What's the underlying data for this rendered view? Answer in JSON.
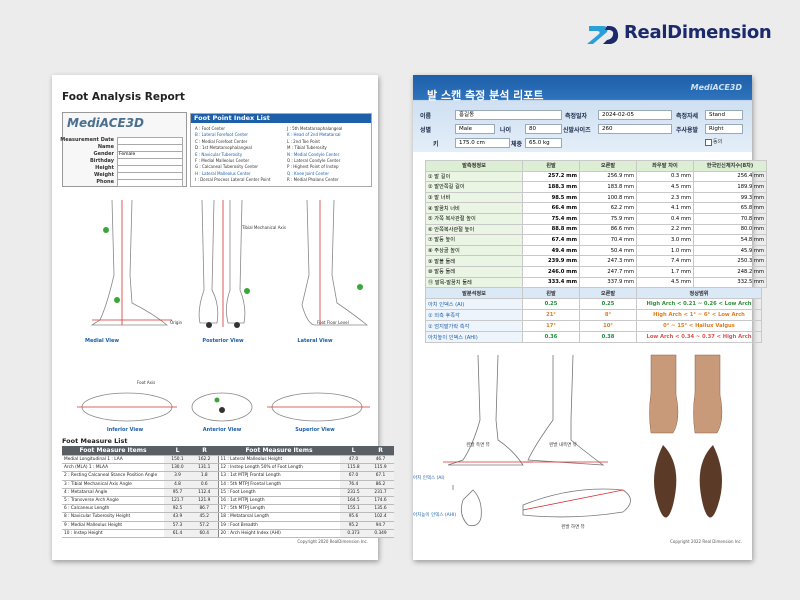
{
  "brand": "RealDimension",
  "report_en": {
    "title": "Foot Analysis Report",
    "logo": "MediACE3D",
    "fields": [
      "Measurement Date",
      "Name",
      "Gender",
      "Birthday",
      "Height",
      "Weight",
      "Phone"
    ],
    "gender_value": "Female",
    "point_index": {
      "title": "Foot Point Index List",
      "items": [
        "A : Foot Center",
        "B : Lateral Forefoot Center",
        "C : Medial Forefoot Center",
        "D : 1st Metatarsophalangeal",
        "E : Navicular Tuberosity",
        "F : Medial Malleolus Center",
        "G : Calcaneal Tuberosity Center",
        "H : Lateral Malleolus Center",
        "I : Dorsal Process Lateral Center Point",
        "J : 5th Metatarsophalangeal",
        "K : Head of 2nd Metatarsal",
        "L : 2nd Toe Point",
        "M : Tibial Tuberosity",
        "N : Medial Condyle Center",
        "O : Lateral Condyle Center",
        "P : Highest Point of Instep",
        "Q : Knee Joint Center",
        "R : Medial Phalanx Center"
      ]
    },
    "views": [
      "Medial View",
      "Posterior View",
      "Lateral View",
      "Inferior View",
      "Anterior View",
      "Superior View"
    ],
    "diagram_labels": [
      "Tibial Mechanical Axis",
      "Origin",
      "Foot Floor Level",
      "Foot Axis"
    ],
    "measure_list": {
      "title": "Foot Measure List",
      "headers": [
        "Foot Measure Items",
        "L",
        "R",
        "Foot Measure Items",
        "L",
        "R"
      ],
      "rows": [
        [
          "Medial Longitudinal   1 : LAA",
          "150.1",
          "162.2",
          "11 : Lateral Malleolus Height",
          "47.0",
          "46.7"
        ],
        [
          "Arch (MLA)   1 : MLAA",
          "130.0",
          "131.1",
          "12 : Instep Length 50% of Foot Length",
          "115.8",
          "115.9"
        ],
        [
          "2 : Resting Calcaneal Stance Position Angle",
          "3.9",
          "1.8",
          "13 : 1st MTPJ Frontal Length",
          "67.0",
          "67.1"
        ],
        [
          "3 : Tibial Mechanical Axis Angle",
          "4.8",
          "0.6",
          "14 : 5th MTPJ Frontal Length",
          "76.4",
          "86.2"
        ],
        [
          "4 : Metatarsal Angle",
          "95.7",
          "112.4",
          "15 : Foot Length",
          "231.5",
          "231.7"
        ],
        [
          "5 : Transverse Arch Angle",
          "121.7",
          "121.9",
          "16 : 1st MTPJ Length",
          "164.5",
          "174.6"
        ],
        [
          "6 : Calcaneus Length",
          "92.5",
          "86.7",
          "17 : 5th MTPJ Length",
          "155.1",
          "135.6"
        ],
        [
          "8 : Navicular Tuberosity Height",
          "43.9",
          "45.2",
          "18 : Metatarsal Length",
          "95.6",
          "102.4"
        ],
        [
          "9 : Medial Malleolus Height",
          "57.3",
          "57.2",
          "19 : Foot Breadth",
          "95.2",
          "94.7"
        ],
        [
          "10 : Instep Height",
          "61.4",
          "60.4",
          "20 : Arch Height Index (AHI)",
          "0.373",
          "0.349"
        ]
      ]
    },
    "copyright": "Copyright 2020 RealDimension Inc."
  },
  "report_ko": {
    "title": "발 스캔 측정 분석 리포트",
    "logo": "MediACE3D",
    "info": [
      [
        "이름",
        "홍길동"
      ],
      [
        "측정일자",
        "2024-02-05"
      ],
      [
        "측정자세",
        "Stand"
      ],
      [
        "성별",
        "Male"
      ],
      [
        "나이",
        "80"
      ],
      [
        "신발사이즈",
        "260"
      ],
      [
        "주사용발",
        "Right"
      ],
      [
        "키",
        "175.0 cm"
      ],
      [
        "체중",
        "65.0 kg"
      ]
    ],
    "consent": "동의",
    "table1": {
      "headers": [
        "발측정정보",
        "왼발",
        "오른발",
        "좌우발 차이",
        "한국인신체지수(8차)"
      ],
      "rows": [
        [
          "① 발 길이",
          "257.2 mm",
          "256.9 mm",
          "0.3 mm",
          "256.4 mm"
        ],
        [
          "② 발안쪽길 길이",
          "188.3 mm",
          "183.8 mm",
          "4.5 mm",
          "189.9 mm"
        ],
        [
          "③ 발 너비",
          "98.5 mm",
          "100.8 mm",
          "2.3 mm",
          "99.3 mm"
        ],
        [
          "④ 발꿈치 너비",
          "66.4 mm",
          "62.2 mm",
          "4.1 mm",
          "65.8 mm"
        ],
        [
          "⑤ 가쪽 복사관절 높이",
          "75.4 mm",
          "75.9 mm",
          "0.4 mm",
          "70.8 mm"
        ],
        [
          "⑥ 안쪽복사관절 높이",
          "88.8 mm",
          "86.6 mm",
          "2.2 mm",
          "80.0 mm"
        ],
        [
          "⑦ 발등 높이",
          "67.4 mm",
          "70.4 mm",
          "3.0 mm",
          "54.8 mm"
        ],
        [
          "⑧ 주상골 높이",
          "49.4 mm",
          "50.4 mm",
          "1.0 mm",
          "45.9 mm"
        ],
        [
          "⑨ 발볼 둘레",
          "239.9 mm",
          "247.3 mm",
          "7.4 mm",
          "250.3 mm"
        ],
        [
          "⑩ 발등 둘레",
          "246.0 mm",
          "247.7 mm",
          "1.7 mm",
          "248.2 mm"
        ],
        [
          "⑪ 발목-발꿈치 둘레",
          "333.4 mm",
          "337.9 mm",
          "4.5 mm",
          "332.5 mm"
        ]
      ]
    },
    "table2": {
      "headers": [
        "발분석정보",
        "왼발",
        "오른발",
        "정상범위"
      ],
      "rows": [
        [
          "아치 인덱스 (AI)",
          "0.25",
          "0.25",
          "High Arch < 0.21 ~ 0.26 < Low Arch"
        ],
        [
          "① 외측 후족각",
          "21°",
          "8°",
          "High Arch < 1° ~ 6° < Low Arch"
        ],
        [
          "② 엄지발가락 측각",
          "17°",
          "10°",
          "0° ~ 15° < Hallux Valgus"
        ],
        [
          "아치높이 인덱스 (AHI)",
          "0.36",
          "0.38",
          "Low Arch < 0.34 ~ 0.37 < High Arch"
        ]
      ]
    },
    "diagram_labels": [
      "왼발 측면 뷰",
      "왼발 내측면 뷰",
      "왼발 하면 뷰",
      "아치 인덱스 (AI)",
      "아치높이 인덱스 (AHI)"
    ],
    "copyright": "Copyright 2022 Real Dimension Inc."
  }
}
